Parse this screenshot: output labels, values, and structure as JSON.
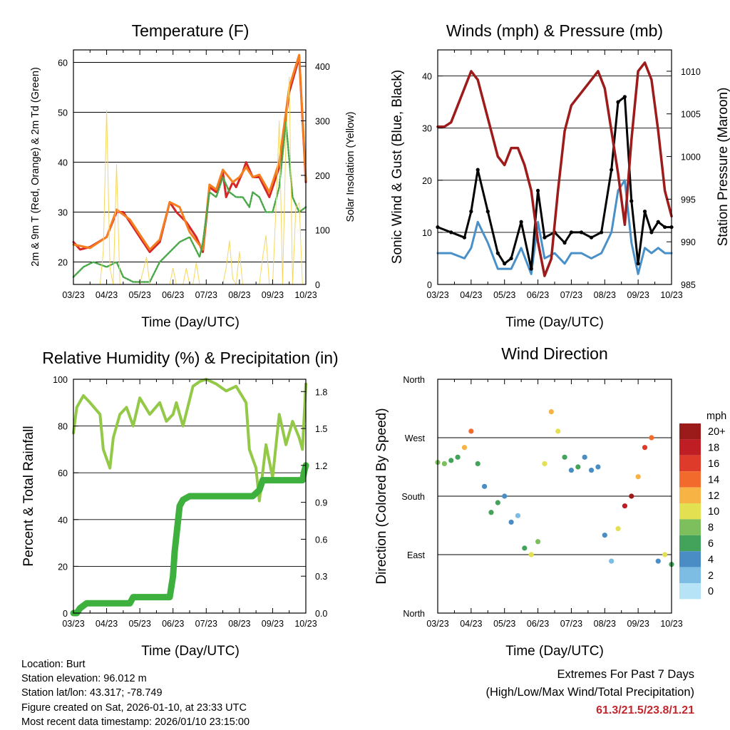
{
  "chart_data": [
    {
      "id": "temperature",
      "type": "line",
      "title": "Temperature (F)",
      "xlabel": "Time (Day/UTC)",
      "ylabel": "2m & 9m T (Red, Orange) & 2m Td (Green)",
      "y2label": "Solar Insolation (Yellow)",
      "x_ticks": [
        "03/23",
        "04/23",
        "05/23",
        "06/23",
        "07/23",
        "08/23",
        "09/23",
        "10/23"
      ],
      "ylim": [
        15.5,
        62.5
      ],
      "yticks": [
        20,
        30,
        40,
        50,
        60
      ],
      "y2lim": [
        0,
        430
      ],
      "y2ticks": [
        0,
        100,
        200,
        300,
        400
      ],
      "series": [
        {
          "name": "2m T",
          "color": "#d62728",
          "x": [
            0,
            0.2,
            0.5,
            1,
            1.3,
            1.5,
            1.7,
            2,
            2.3,
            2.6,
            2.9,
            3.1,
            3.4,
            3.7,
            3.9,
            4.1,
            4.3,
            4.5,
            4.6,
            4.8,
            4.9,
            5.1,
            5.2,
            5.4,
            5.6,
            5.9,
            6.2,
            6.5,
            6.8,
            7
          ],
          "values": [
            24,
            22.5,
            23,
            25,
            30,
            30,
            28,
            25,
            22,
            24,
            32,
            30,
            28,
            25,
            22,
            35,
            34,
            38,
            33,
            36,
            35,
            38,
            40,
            37,
            37,
            33,
            39,
            54,
            61,
            36
          ]
        },
        {
          "name": "9m T",
          "color": "#f57f20",
          "x": [
            0,
            0.5,
            1,
            1.3,
            1.7,
            2,
            2.3,
            2.6,
            2.9,
            3.2,
            3.5,
            3.9,
            4.1,
            4.3,
            4.5,
            4.8,
            5,
            5.2,
            5.4,
            5.6,
            5.9,
            6.2,
            6.5,
            6.8,
            7
          ],
          "values": [
            23.5,
            22.8,
            25,
            30.5,
            28.5,
            25.5,
            22.5,
            24.5,
            32,
            31,
            26,
            22.5,
            35.5,
            34.5,
            38.5,
            36,
            37,
            39,
            37,
            37.5,
            34,
            40,
            55,
            61.5,
            36.5
          ]
        },
        {
          "name": "2m Td",
          "color": "#4aa84a",
          "x": [
            0,
            0.3,
            0.6,
            1,
            1.3,
            1.5,
            1.8,
            2,
            2.3,
            2.6,
            2.9,
            3.2,
            3.5,
            3.8,
            3.9,
            4.1,
            4.3,
            4.5,
            4.7,
            4.9,
            5.1,
            5.3,
            5.4,
            5.6,
            5.8,
            6,
            6.2,
            6.4,
            6.6,
            6.8,
            7
          ],
          "values": [
            17,
            19,
            20,
            19,
            20,
            17,
            16,
            16,
            16,
            20,
            22,
            24,
            25,
            21,
            24,
            34,
            33,
            37,
            34,
            33,
            33,
            31,
            34,
            33,
            30,
            30,
            35,
            48,
            33,
            30,
            31
          ]
        },
        {
          "name": "Solar Insolation",
          "color": "#f6d75e",
          "axis": "right",
          "x": [
            0.8,
            0.9,
            1.0,
            1.1,
            1.2,
            1.3,
            1.4,
            2.0,
            2.1,
            2.2,
            2.3,
            2.9,
            3.0,
            3.1,
            3.3,
            3.4,
            3.5,
            3.6,
            3.7,
            3.8,
            3.9,
            4.0,
            4.5,
            4.6,
            4.7,
            4.8,
            4.9,
            5.0,
            5.1,
            5.2,
            5.3,
            5.4,
            5.5,
            5.6,
            5.7,
            5.8,
            5.9,
            6.0,
            6.1,
            6.2,
            6.3,
            6.4,
            6.5,
            6.6,
            6.7,
            6.8,
            6.9,
            7.0
          ],
          "values": [
            0,
            60,
            320,
            30,
            0,
            220,
            0,
            0,
            25,
            50,
            0,
            0,
            30,
            0,
            0,
            30,
            0,
            0,
            40,
            0,
            0,
            0,
            0,
            30,
            80,
            10,
            0,
            60,
            0,
            0,
            0,
            0,
            0,
            0,
            50,
            90,
            0,
            0,
            140,
            300,
            0,
            270,
            380,
            0,
            140,
            150,
            0,
            0
          ]
        }
      ]
    },
    {
      "id": "winds",
      "type": "line",
      "title": "Winds (mph) & Pressure (mb)",
      "xlabel": "Time (Day/UTC)",
      "ylabel": "Sonic Wind & Gust (Blue, Black)",
      "y2label": "Station Pressure (Maroon)",
      "x_ticks": [
        "03/23",
        "04/23",
        "05/23",
        "06/23",
        "07/23",
        "08/23",
        "09/23",
        "10/23"
      ],
      "ylim": [
        0,
        45
      ],
      "yticks": [
        0,
        10,
        20,
        30,
        40
      ],
      "y2lim": [
        985,
        1012.5
      ],
      "y2ticks": [
        985,
        990,
        995,
        1000,
        1005,
        1010
      ],
      "series": [
        {
          "name": "Sonic Wind",
          "color": "#4a90c8",
          "x": [
            0,
            0.4,
            0.8,
            1,
            1.2,
            1.5,
            1.8,
            2,
            2.2,
            2.5,
            2.8,
            3,
            3.2,
            3.5,
            3.8,
            4,
            4.3,
            4.6,
            4.9,
            5.2,
            5.4,
            5.6,
            5.8,
            6,
            6.2,
            6.4,
            6.6,
            6.8,
            7
          ],
          "values": [
            6,
            6,
            5,
            7,
            12,
            8,
            3,
            3,
            3,
            7,
            2,
            12,
            5,
            6,
            4,
            6,
            6,
            5,
            6,
            10,
            18,
            20,
            8,
            2,
            7,
            6,
            7,
            6,
            6
          ]
        },
        {
          "name": "Gust",
          "color": "#000000",
          "x": [
            0,
            0.4,
            0.8,
            1,
            1.2,
            1.5,
            1.8,
            2,
            2.2,
            2.5,
            2.8,
            3,
            3.2,
            3.5,
            3.8,
            4,
            4.3,
            4.6,
            4.9,
            5.2,
            5.4,
            5.6,
            5.8,
            6,
            6.2,
            6.4,
            6.6,
            6.8,
            7
          ],
          "values": [
            11,
            10,
            9,
            14,
            22,
            14,
            6,
            4,
            5,
            12,
            3,
            18,
            9,
            10,
            8,
            10,
            10,
            9,
            10,
            22,
            35,
            36,
            16,
            4,
            14,
            10,
            12,
            11,
            11
          ]
        },
        {
          "name": "Station Pressure",
          "color": "#9e1b1b",
          "axis": "right",
          "x": [
            0,
            0.2,
            0.4,
            0.6,
            0.8,
            1,
            1.2,
            1.4,
            1.6,
            1.8,
            2,
            2.2,
            2.4,
            2.6,
            2.8,
            3,
            3.2,
            3.4,
            3.6,
            3.8,
            4,
            4.2,
            4.4,
            4.6,
            4.8,
            5,
            5.2,
            5.4,
            5.6,
            5.8,
            6,
            6.2,
            6.4,
            6.6,
            6.8,
            7
          ],
          "values": [
            1003.5,
            1003.5,
            1004,
            1006,
            1008,
            1010,
            1009,
            1006,
            1003,
            1000,
            999,
            1001,
            1001,
            999,
            996,
            990,
            986,
            988,
            996,
            1003,
            1006,
            1007,
            1008,
            1009,
            1010,
            1008,
            1003,
            998,
            992,
            1002,
            1010,
            1011,
            1009,
            1003,
            996,
            993
          ]
        }
      ]
    },
    {
      "id": "humidity",
      "type": "line",
      "title": "Relative Humidity (%) & Precipitation (in)",
      "xlabel": "Time (Day/UTC)",
      "ylabel": "Percent & Total Rainfall",
      "x_ticks": [
        "03/23",
        "04/23",
        "05/23",
        "06/23",
        "07/23",
        "08/23",
        "09/23",
        "10/23"
      ],
      "ylim": [
        0,
        100
      ],
      "yticks": [
        0,
        20,
        40,
        60,
        80,
        100
      ],
      "y2lim": [
        0,
        1.9
      ],
      "y2ticks": [
        "0.0",
        "0.3",
        "0.6",
        "0.9",
        "1.2",
        "1.5",
        "1.8"
      ],
      "series": [
        {
          "name": "Relative Humidity",
          "color": "#93c947",
          "x": [
            0,
            0.1,
            0.3,
            0.5,
            0.8,
            0.9,
            1.1,
            1.2,
            1.4,
            1.6,
            1.8,
            2.0,
            2.3,
            2.6,
            2.8,
            3.0,
            3.1,
            3.3,
            3.6,
            3.8,
            4.0,
            4.3,
            4.6,
            4.9,
            5.2,
            5.3,
            5.5,
            5.6,
            5.8,
            6.0,
            6.2,
            6.4,
            6.6,
            6.8,
            6.9,
            7.0
          ],
          "values": [
            77,
            88,
            93,
            90,
            85,
            70,
            62,
            75,
            85,
            88,
            80,
            92,
            85,
            90,
            82,
            85,
            90,
            80,
            97,
            99,
            100,
            98,
            95,
            97,
            90,
            70,
            62,
            48,
            72,
            58,
            85,
            72,
            82,
            75,
            70,
            98
          ]
        },
        {
          "name": "Total Precipitation",
          "color": "#3db03d",
          "axis": "right",
          "x": [
            0,
            0.1,
            0.2,
            0.4,
            1.0,
            1.5,
            1.7,
            1.8,
            2.3,
            2.9,
            3.0,
            3.05,
            3.2,
            3.3,
            3.5,
            4.0,
            5.0,
            5.4,
            5.6,
            5.7,
            6.0,
            6.5,
            6.9,
            6.95,
            7.0
          ],
          "values": [
            0,
            0,
            0.04,
            0.08,
            0.08,
            0.08,
            0.08,
            0.13,
            0.13,
            0.13,
            0.3,
            0.5,
            0.87,
            0.92,
            0.95,
            0.95,
            0.95,
            0.95,
            1.0,
            1.08,
            1.08,
            1.08,
            1.08,
            1.15,
            1.2
          ]
        }
      ]
    },
    {
      "id": "wind-direction",
      "type": "scatter",
      "title": "Wind Direction",
      "xlabel": "Time (Day/UTC)",
      "ylabel": "Direction (Colored By Speed)",
      "x_ticks": [
        "03/23",
        "04/23",
        "05/23",
        "06/23",
        "07/23",
        "08/23",
        "09/23",
        "10/23"
      ],
      "y_ticks": [
        "North",
        "East",
        "South",
        "West",
        "North"
      ],
      "ylim": [
        0,
        360
      ],
      "legend_title": "mph",
      "legend_labels": [
        "0",
        "2",
        "4",
        "6",
        "8",
        "10",
        "12",
        "14",
        "16",
        "18",
        "20+"
      ],
      "legend_colors": [
        "#b7e3f6",
        "#7dbde4",
        "#4a8cc4",
        "#43a35a",
        "#7cbf5c",
        "#e3e052",
        "#f7b343",
        "#f26a2c",
        "#de3b2b",
        "#bf1e24",
        "#9b1b1b"
      ],
      "series": [
        {
          "name": "Wind Direction",
          "x": [
            0,
            0.2,
            0.4,
            0.6,
            0.8,
            1,
            1.2,
            1.4,
            1.6,
            1.8,
            2,
            2.2,
            2.4,
            2.6,
            2.8,
            3,
            3.2,
            3.4,
            3.6,
            3.8,
            4,
            4.2,
            4.4,
            4.6,
            4.8,
            5,
            5.2,
            5.4,
            5.6,
            5.8,
            6,
            6.2,
            6.4,
            6.6,
            6.8,
            7
          ],
          "values": [
            232,
            230,
            235,
            240,
            255,
            280,
            230,
            195,
            155,
            170,
            180,
            140,
            150,
            100,
            90,
            110,
            230,
            310,
            280,
            240,
            220,
            225,
            240,
            220,
            225,
            120,
            80,
            130,
            165,
            180,
            210,
            255,
            270,
            80,
            90,
            75
          ],
          "speeds": [
            7,
            8,
            6,
            5,
            11,
            13,
            5,
            4,
            5,
            6,
            4,
            3,
            2,
            5,
            9,
            8,
            9,
            12,
            10,
            5,
            4,
            5,
            4,
            4,
            4,
            3,
            2,
            10,
            18,
            19,
            12,
            16,
            14,
            4,
            9,
            6
          ]
        }
      ]
    }
  ],
  "footer": {
    "location": "Location: Burt",
    "elevation": "Station elevation: 96.012 m",
    "latlon": "Station lat/lon: 43.317; -78.749",
    "created": "Figure created on Sat, 2026-01-10, at 23:33 UTC",
    "recent": "Most recent data timestamp: 2026/01/10 23:15:00"
  },
  "extremes": {
    "title": "Extremes For Past 7 Days",
    "subtitle": "(High/Low/Max Wind/Total Precipitation)",
    "values": "61.3/21.5/23.8/1.21"
  }
}
